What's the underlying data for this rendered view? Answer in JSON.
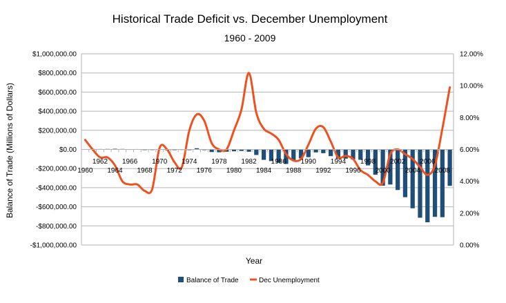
{
  "chart_data": {
    "type": "bar+line",
    "title": "Historical Trade Deficit vs. December Unemployment",
    "subtitle": "1960 - 2009",
    "xlabel": "Year",
    "ylabel": "Balance of Trade (Millions of Dollars)",
    "ylim": [
      -1000000,
      1000000
    ],
    "y2lim": [
      0,
      12
    ],
    "grid": true,
    "legend_position": "bottom",
    "y_ticks": [
      "$1,000,000.00",
      "$800,000.00",
      "$600,000.00",
      "$400,000.00",
      "$200,000.00",
      "$0.00",
      "-$200,000.00",
      "-$400,000.00",
      "-$600,000.00",
      "-$800,000.00",
      "-$1,000,000.00"
    ],
    "y2_ticks": [
      "12.00%",
      "10.00%",
      "8.00%",
      "6.00%",
      "4.00%",
      "2.00%",
      "0.00%"
    ],
    "x_tick_labels": [
      "1960",
      "1962",
      "1964",
      "1966",
      "1968",
      "1970",
      "1972",
      "1974",
      "1976",
      "1978",
      "1980",
      "1982",
      "1984",
      "1986",
      "1988",
      "1990",
      "1992",
      "1994",
      "1996",
      "1998",
      "2000",
      "2002",
      "2004",
      "2006",
      "2008"
    ],
    "x": [
      1960,
      1961,
      1962,
      1963,
      1964,
      1965,
      1966,
      1967,
      1968,
      1969,
      1970,
      1971,
      1972,
      1973,
      1974,
      1975,
      1976,
      1977,
      1978,
      1979,
      1980,
      1981,
      1982,
      1983,
      1984,
      1985,
      1986,
      1987,
      1988,
      1989,
      1990,
      1991,
      1992,
      1993,
      1994,
      1995,
      1996,
      1997,
      1998,
      1999,
      2000,
      2001,
      2002,
      2003,
      2004,
      2005,
      2006,
      2007,
      2008,
      2009
    ],
    "series": [
      {
        "name": "Balance of Trade",
        "type": "bar",
        "color": "#1f4e79",
        "values": [
          3500,
          5500,
          4500,
          5200,
          7000,
          5000,
          3000,
          3800,
          600,
          1000,
          2600,
          -2300,
          -6400,
          1900,
          -4300,
          12400,
          -6100,
          -27200,
          -29800,
          -24600,
          -19400,
          -16200,
          -24200,
          -57800,
          -109100,
          -121900,
          -138500,
          -151700,
          -114600,
          -93100,
          -80900,
          -31100,
          -39200,
          -70300,
          -98400,
          -96400,
          -104100,
          -108200,
          -166900,
          -265000,
          -379500,
          -367000,
          -424400,
          -499400,
          -615400,
          -714400,
          -762000,
          -705400,
          -708700,
          -380700
        ]
      },
      {
        "name": "Dec Unemployment",
        "type": "line",
        "color": "#f0501e",
        "axis": "right",
        "values": [
          6.6,
          6.0,
          5.5,
          5.5,
          5.0,
          4.0,
          3.8,
          3.8,
          3.4,
          3.5,
          6.1,
          6.0,
          5.2,
          4.9,
          7.2,
          8.2,
          7.8,
          6.4,
          6.0,
          6.0,
          7.2,
          8.5,
          10.8,
          8.3,
          7.3,
          7.0,
          6.6,
          5.7,
          5.3,
          5.4,
          6.3,
          7.3,
          7.4,
          6.5,
          5.5,
          5.6,
          5.4,
          4.7,
          4.4,
          4.0,
          3.9,
          5.7,
          6.0,
          5.7,
          5.4,
          4.9,
          4.4,
          5.0,
          7.3,
          9.9
        ]
      }
    ]
  }
}
